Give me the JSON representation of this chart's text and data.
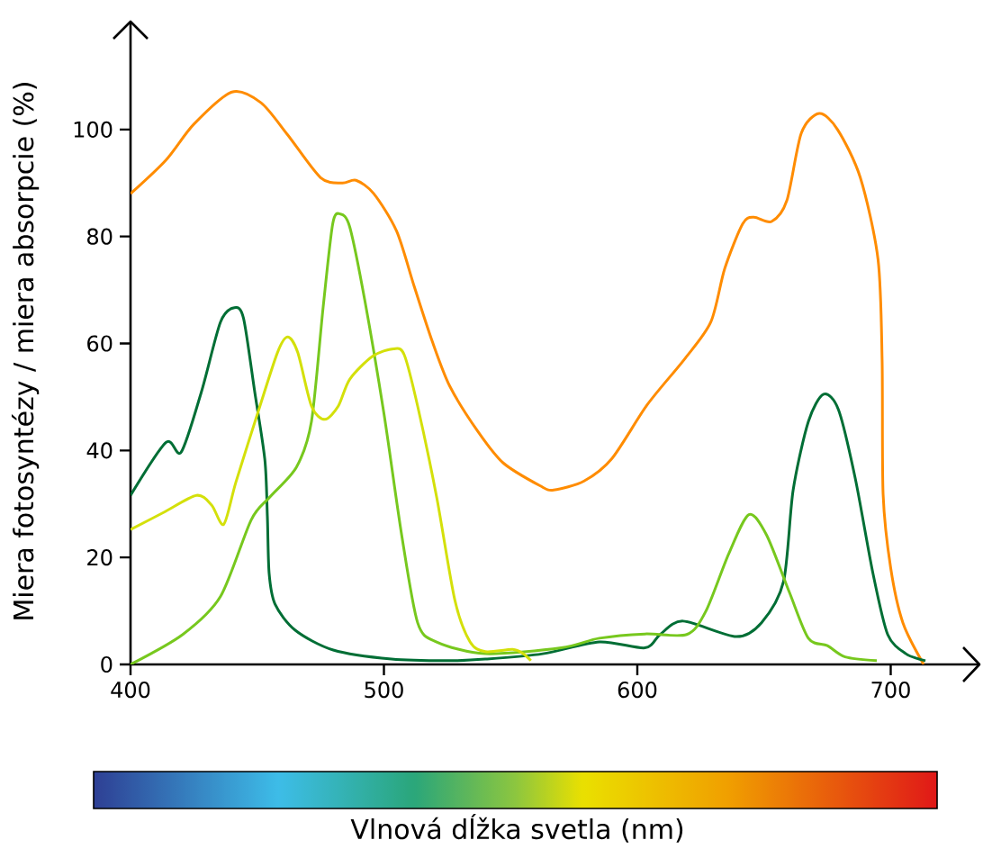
{
  "chart_data": {
    "type": "line",
    "xlabel": "Vlnová dĺžka svetla (nm)",
    "ylabel": "Miera fotosyntézy / miera absorpcie (%)",
    "xlim": [
      400,
      735
    ],
    "ylim": [
      0,
      120
    ],
    "xticks": [
      400,
      500,
      600,
      700
    ],
    "yticks": [
      0,
      20,
      40,
      60,
      80,
      100
    ],
    "grid": false,
    "series": [
      {
        "color": "#ff8c00",
        "x": [
          400,
          414,
          425,
          440,
          451.5,
          462,
          475,
          483.5,
          489,
          496,
          505,
          512,
          519,
          526,
          537,
          547,
          561.6,
          567,
          579,
          590,
          604,
          618.5,
          629,
          634.5,
          641.6,
          646,
          653,
          659,
          664.7,
          671.8,
          679,
          688,
          695,
          696.6,
          697,
          700,
          704.8,
          713
        ],
        "values": [
          88,
          94.3,
          101,
          107,
          105,
          99,
          91,
          90,
          90.5,
          88,
          81,
          70.6,
          60.5,
          52,
          43.6,
          37.7,
          33.4,
          32.6,
          34.3,
          38.5,
          48.6,
          57,
          64,
          74,
          82.4,
          83.6,
          82.8,
          86.7,
          99.3,
          103,
          100,
          91,
          75.7,
          57,
          31.8,
          18,
          7.8,
          0
        ]
      },
      {
        "color": "#006e35",
        "x": [
          400,
          414,
          420,
          428,
          435.5,
          441,
          444.6,
          449,
          453,
          454,
          454.7,
          457,
          465,
          480,
          503,
          525,
          540,
          562.7,
          585,
          603,
          609,
          618,
          639,
          649,
          657.7,
          661.5,
          667.5,
          673.5,
          679.4,
          686,
          693,
          698.8,
          706,
          713.7
        ],
        "values": [
          31.6,
          41.5,
          39.7,
          51,
          64,
          66.7,
          64.7,
          51,
          38.3,
          27.7,
          17,
          11.3,
          6.4,
          2.7,
          1,
          0.7,
          1,
          2,
          4.2,
          3.1,
          5.6,
          8.1,
          5.2,
          7.8,
          15.5,
          32.6,
          45.4,
          50.5,
          47.6,
          34.8,
          17,
          5.6,
          2,
          0.7
        ]
      },
      {
        "color": "#77c81e",
        "x": [
          400,
          420.6,
          435.5,
          447.6,
          455,
          465.5,
          471.4,
          476,
          479.8,
          482.8,
          486.5,
          492.4,
          500,
          507,
          513.3,
          520.8,
          540,
          570,
          585,
          603,
          619.5,
          627,
          636,
          644,
          651,
          660,
          667.5,
          675,
          682,
          694.5
        ],
        "values": [
          0,
          5.6,
          12.7,
          27,
          31.3,
          36.9,
          45.4,
          66.7,
          82.4,
          84.2,
          81.8,
          68.2,
          46.9,
          24.2,
          7.8,
          4.2,
          2,
          3.1,
          4.9,
          5.7,
          5.6,
          9.9,
          20.6,
          28,
          24.2,
          13.5,
          4.9,
          3.5,
          1.4,
          0.7
        ]
      },
      {
        "color": "#d4e00a",
        "x": [
          400,
          413,
          426,
          432,
          436.8,
          441.6,
          450.6,
          458,
          462,
          466,
          471.4,
          476.7,
          482,
          486.5,
          495.5,
          503.8,
          508,
          513.3,
          520.8,
          528,
          534,
          540,
          550.8,
          555,
          558
        ],
        "values": [
          25.2,
          28.4,
          31.6,
          29.8,
          26.2,
          34.1,
          47.6,
          58.3,
          61.2,
          58.3,
          48.3,
          45.8,
          48.3,
          53.3,
          57.6,
          59,
          57.9,
          48.3,
          31.3,
          12,
          4.2,
          2.4,
          2.8,
          2,
          0.7
        ]
      }
    ]
  }
}
